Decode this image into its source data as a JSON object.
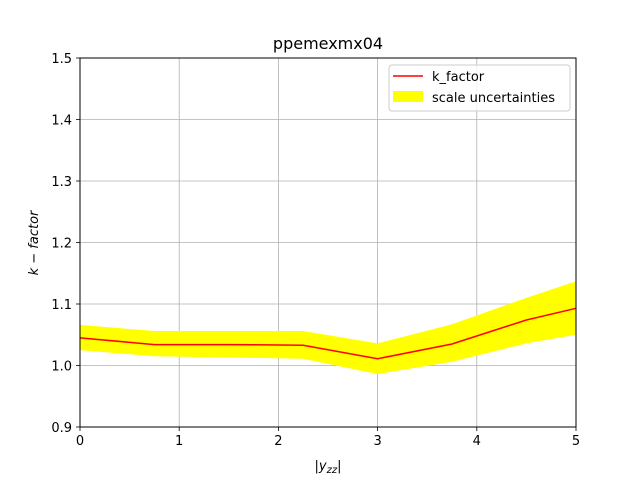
{
  "chart_data": {
    "type": "line",
    "title": "ppemexmx04",
    "xlabel": "|y_zz|",
    "ylabel": "k − factor",
    "xlim": [
      0,
      5
    ],
    "ylim": [
      0.9,
      1.5
    ],
    "xticks": [
      0,
      1,
      2,
      3,
      4,
      5
    ],
    "yticks": [
      0.9,
      1.0,
      1.1,
      1.2,
      1.3,
      1.4,
      1.5
    ],
    "xtick_labels": [
      "0",
      "1",
      "2",
      "3",
      "4",
      "5"
    ],
    "ytick_labels": [
      "0.9",
      "1.0",
      "1.1",
      "1.2",
      "1.3",
      "1.4",
      "1.5"
    ],
    "grid": true,
    "legend_position": "top-right",
    "series": [
      {
        "name": "k_factor",
        "color": "#ff0000",
        "x": [
          0,
          0.75,
          1.5,
          2.25,
          3.0,
          3.75,
          4.5,
          5.0
        ],
        "y": [
          1.045,
          1.034,
          1.034,
          1.033,
          1.011,
          1.035,
          1.074,
          1.093
        ]
      }
    ],
    "band": {
      "name": "scale uncertainties",
      "color": "#ffff00",
      "x": [
        0,
        0.75,
        1.5,
        2.25,
        3.0,
        3.75,
        4.5,
        5.0
      ],
      "lower": [
        1.025,
        1.015,
        1.013,
        1.011,
        0.986,
        1.006,
        1.036,
        1.05
      ],
      "upper": [
        1.066,
        1.056,
        1.056,
        1.056,
        1.036,
        1.067,
        1.11,
        1.137
      ]
    }
  }
}
